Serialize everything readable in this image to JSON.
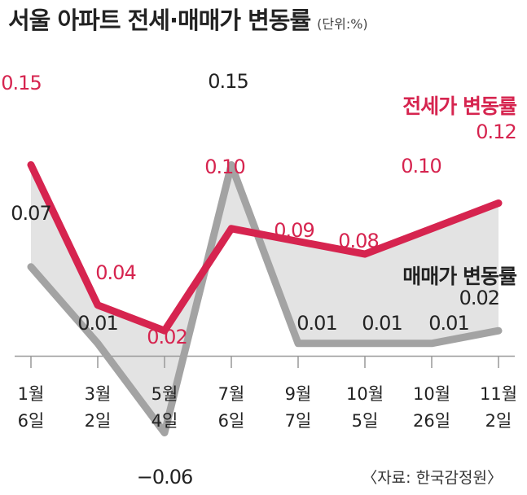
{
  "title": "서울 아파트 전세·매매가 변동률",
  "unit": "(단위:%)",
  "source": "〈자료: 한국감정원〉",
  "colors": {
    "jeonse": "#d6244f",
    "sale": "#a3a3a3",
    "fill": "#e3e3e3",
    "axis": "#999999",
    "text": "#222222"
  },
  "chart_data": {
    "type": "line",
    "categories": [
      "1월\n6일",
      "3월\n2일",
      "5월\n4일",
      "7월\n6일",
      "9월\n7일",
      "10월\n5일",
      "10월\n26일",
      "11월\n2일"
    ],
    "series": [
      {
        "name": "전세가 변동률",
        "values": [
          0.15,
          0.04,
          0.02,
          0.1,
          0.09,
          0.08,
          0.1,
          0.12
        ],
        "labels": [
          "0.15",
          "0.04",
          "0.02",
          "0.10",
          "0.09",
          "0.08",
          "0.10",
          "0.12"
        ]
      },
      {
        "name": "매매가 변동률",
        "values": [
          0.07,
          0.01,
          -0.06,
          0.15,
          0.01,
          0.01,
          0.01,
          0.02
        ],
        "labels": [
          "0.07",
          "0.01",
          "−0.06",
          "0.15",
          "0.01",
          "0.01",
          "0.01",
          "0.02"
        ]
      }
    ],
    "xlabel": "",
    "ylabel": "",
    "ylim": [
      -0.06,
      0.15
    ],
    "grid": false,
    "legend": "inline labels"
  }
}
